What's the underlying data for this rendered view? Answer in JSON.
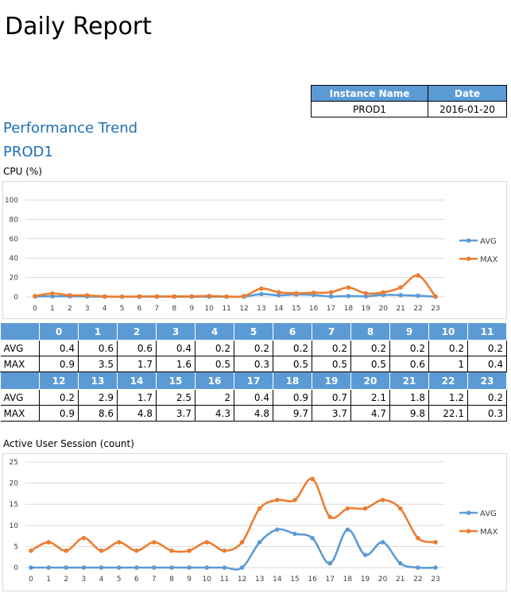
{
  "report": {
    "title": "Daily Report"
  },
  "info_table": {
    "headers": [
      "Instance Name",
      "Date"
    ],
    "values": [
      "PROD1",
      "2016-01-20"
    ]
  },
  "section": {
    "heading": "Performance Trend",
    "instance": "PROD1"
  },
  "cpu": {
    "label": "CPU (%)",
    "table_rows": [
      "AVG",
      "MAX"
    ]
  },
  "sessions": {
    "label": "Active User Session (count)"
  },
  "colors": {
    "avg": "#5b9bd5",
    "max": "#ed7d31",
    "header": "#5b9bd5"
  },
  "chart_data": [
    {
      "type": "line",
      "title": "CPU (%)",
      "categories": [
        "0",
        "1",
        "2",
        "3",
        "4",
        "5",
        "6",
        "7",
        "8",
        "9",
        "10",
        "11",
        "12",
        "13",
        "14",
        "15",
        "16",
        "17",
        "18",
        "19",
        "20",
        "21",
        "22",
        "23"
      ],
      "series": [
        {
          "name": "AVG",
          "values": [
            0.4,
            0.6,
            0.6,
            0.4,
            0.2,
            0.2,
            0.2,
            0.2,
            0.2,
            0.2,
            0.2,
            0.2,
            0.2,
            2.9,
            1.7,
            2.5,
            2,
            0.4,
            0.9,
            0.7,
            2.1,
            1.8,
            1.2,
            0.2
          ]
        },
        {
          "name": "MAX",
          "values": [
            0.9,
            3.5,
            1.7,
            1.6,
            0.5,
            0.3,
            0.5,
            0.5,
            0.5,
            0.6,
            1,
            0.4,
            0.9,
            8.6,
            4.8,
            3.7,
            4.3,
            4.8,
            9.7,
            3.7,
            4.7,
            9.8,
            22.1,
            0.3
          ]
        }
      ],
      "ylim": [
        0,
        100
      ],
      "yticks": [
        0,
        20,
        40,
        60,
        80,
        100
      ],
      "grid": true,
      "legend": "right"
    },
    {
      "type": "line",
      "title": "Active User Session (count)",
      "categories": [
        "0",
        "1",
        "2",
        "3",
        "4",
        "5",
        "6",
        "7",
        "8",
        "9",
        "10",
        "11",
        "12",
        "13",
        "14",
        "15",
        "16",
        "17",
        "18",
        "19",
        "20",
        "21",
        "22",
        "23"
      ],
      "series": [
        {
          "name": "AVG",
          "values": [
            0,
            0,
            0,
            0,
            0,
            0,
            0,
            0,
            0,
            0,
            0,
            0,
            0,
            6,
            9,
            8,
            7,
            1,
            9,
            3,
            6,
            1,
            0,
            0
          ]
        },
        {
          "name": "MAX",
          "values": [
            4,
            6,
            4,
            7,
            4,
            6,
            4,
            6,
            4,
            4,
            6,
            4,
            6,
            14,
            16,
            16,
            21,
            12,
            14,
            14,
            16,
            14,
            7,
            6
          ]
        }
      ],
      "ylim": [
        0,
        25
      ],
      "yticks": [
        0,
        5,
        10,
        15,
        20,
        25
      ],
      "grid": true,
      "legend": "right"
    }
  ]
}
